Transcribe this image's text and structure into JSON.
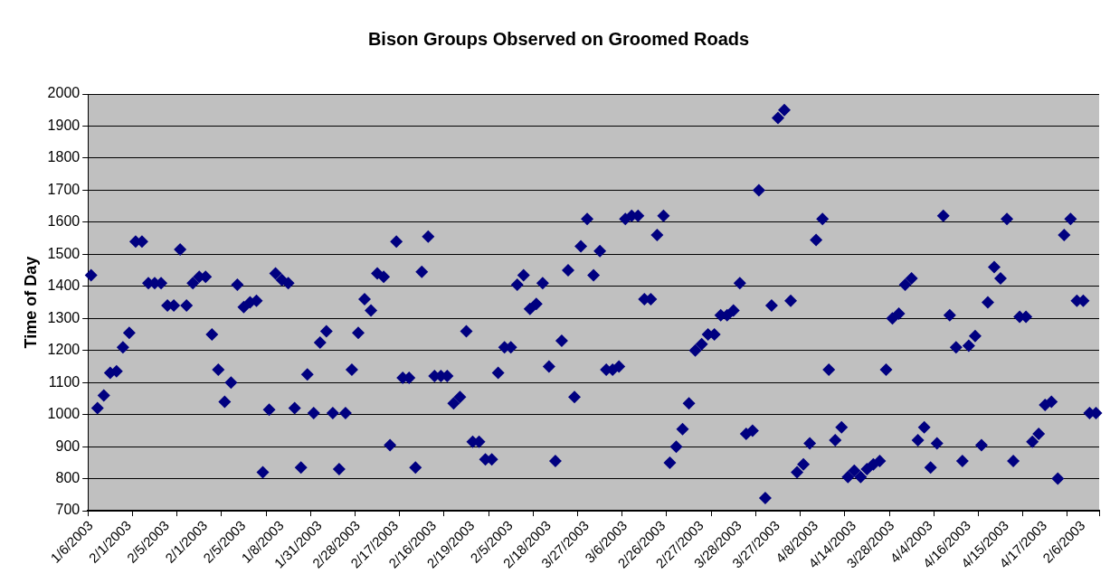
{
  "chart_data": {
    "type": "scatter",
    "title": "Bison Groups Observed on Groomed Roads",
    "ylabel": "Time of Day",
    "categories": [
      "1/6/2003",
      null,
      null,
      null,
      null,
      null,
      "2/1/2003",
      null,
      null,
      null,
      null,
      null,
      "2/5/2003",
      null,
      null,
      null,
      null,
      null,
      "2/1/2003",
      null,
      null,
      null,
      null,
      null,
      "2/5/2003",
      null,
      null,
      null,
      null,
      null,
      "1/8/2003",
      null,
      null,
      null,
      null,
      null,
      "1/31/2003",
      null,
      null,
      null,
      null,
      null,
      "2/28/2003",
      null,
      null,
      null,
      null,
      null,
      "2/17/2003",
      null,
      null,
      null,
      null,
      null,
      "2/16/2003",
      null,
      null,
      null,
      null,
      null,
      "2/19/2003",
      null,
      null,
      null,
      null,
      null,
      "2/5/2003",
      null,
      null,
      null,
      null,
      null,
      "2/18/2003",
      null,
      null,
      null,
      null,
      null,
      "3/27/2003",
      null,
      null,
      null,
      null,
      null,
      "3/6/2003",
      null,
      null,
      null,
      null,
      null,
      "2/26/2003",
      null,
      null,
      null,
      null,
      null,
      "2/27/2003",
      null,
      null,
      null,
      null,
      null,
      "3/28/2003",
      null,
      null,
      null,
      null,
      null,
      "3/27/2003",
      null,
      null,
      null,
      null,
      null,
      "4/8/2003",
      null,
      null,
      null,
      null,
      null,
      "4/14/2003",
      null,
      null,
      null,
      null,
      null,
      "3/28/2003",
      null,
      null,
      null,
      null,
      null,
      "4/4/2003",
      null,
      null,
      null,
      null,
      null,
      "4/16/2003",
      null,
      null,
      null,
      null,
      null,
      "4/15/2003",
      null,
      null,
      null,
      null,
      null,
      "4/17/2003",
      null,
      null,
      null,
      null,
      null,
      "2/6/2003",
      null,
      null
    ],
    "values": [
      1435,
      1020,
      1060,
      1130,
      1135,
      1210,
      1255,
      1540,
      1540,
      1410,
      1410,
      1410,
      1340,
      1340,
      1515,
      1340,
      1410,
      1430,
      1430,
      1250,
      1140,
      1040,
      1100,
      1405,
      1335,
      1350,
      1355,
      820,
      1015,
      1440,
      1420,
      1410,
      1020,
      835,
      1125,
      1005,
      1225,
      1260,
      1005,
      830,
      1005,
      1140,
      1255,
      1360,
      1325,
      1440,
      1430,
      905,
      1540,
      1115,
      1115,
      835,
      1445,
      1555,
      1120,
      1120,
      1120,
      1035,
      1055,
      1260,
      915,
      915,
      860,
      860,
      1130,
      1210,
      1210,
      1405,
      1435,
      1330,
      1345,
      1410,
      1150,
      855,
      1230,
      1450,
      1055,
      1525,
      1610,
      1435,
      1510,
      1140,
      1140,
      1150,
      1610,
      1620,
      1620,
      1360,
      1360,
      1560,
      1620,
      850,
      900,
      955,
      1035,
      1200,
      1220,
      1250,
      1250,
      1310,
      1310,
      1325,
      1410,
      940,
      950,
      1700,
      740,
      1340,
      1925,
      1950,
      1355,
      820,
      845,
      910,
      1545,
      1610,
      1140,
      920,
      960,
      805,
      825,
      805,
      830,
      845,
      855,
      1140,
      1300,
      1315,
      1405,
      1425,
      920,
      960,
      835,
      910,
      1620,
      1310,
      1210,
      855,
      1215,
      1245,
      905,
      1350,
      1460,
      1425,
      1610,
      855,
      1305,
      1305,
      915,
      940,
      1030,
      1040,
      800,
      1560,
      1610,
      1355,
      1355,
      1005,
      1005
    ],
    "color": "#000080",
    "marker": "diamond",
    "ylim": [
      700,
      2000
    ],
    "yticks": [
      700,
      800,
      900,
      1000,
      1100,
      1200,
      1300,
      1400,
      1500,
      1600,
      1700,
      1800,
      1900,
      2000
    ],
    "grid": "y"
  }
}
